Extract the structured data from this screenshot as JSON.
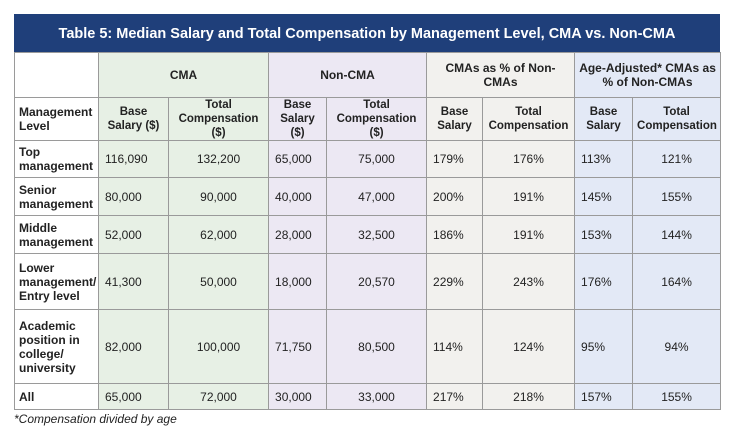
{
  "title": "Table 5: Median Salary and Total Compensation by Management Level, CMA vs. Non-CMA",
  "groups": {
    "cma": "CMA",
    "non_cma": "Non-CMA",
    "pct": "CMAs as % of Non-CMAs",
    "age_adjusted": "Age-Adjusted* CMAs as % of Non-CMAs"
  },
  "headers": {
    "level": "Management Level",
    "base_salary_usd": "Base Salary ($)",
    "total_comp_usd": "Total Compensation ($)",
    "base_salary": "Base Salary",
    "total_comp": "Total Compensation"
  },
  "rows": [
    {
      "level": "Top management",
      "cma_base": "116,090",
      "cma_total": "132,200",
      "non_base": "65,000",
      "non_total": "75,000",
      "pct_base": "179%",
      "pct_total": "176%",
      "age_base": "113%",
      "age_total": "121%"
    },
    {
      "level": "Senior management",
      "cma_base": "80,000",
      "cma_total": "90,000",
      "non_base": "40,000",
      "non_total": "47,000",
      "pct_base": "200%",
      "pct_total": "191%",
      "age_base": "145%",
      "age_total": "155%"
    },
    {
      "level": "Middle management",
      "cma_base": "52,000",
      "cma_total": "62,000",
      "non_base": "28,000",
      "non_total": "32,500",
      "pct_base": "186%",
      "pct_total": "191%",
      "age_base": "153%",
      "age_total": "144%"
    },
    {
      "level": "Lower management/ Entry level",
      "cma_base": "41,300",
      "cma_total": "50,000",
      "non_base": "18,000",
      "non_total": "20,570",
      "pct_base": "229%",
      "pct_total": "243%",
      "age_base": "176%",
      "age_total": "164%"
    },
    {
      "level": "Academic position in college/ university",
      "cma_base": "82,000",
      "cma_total": "100,000",
      "non_base": "71,750",
      "non_total": "80,500",
      "pct_base": "114%",
      "pct_total": "124%",
      "age_base": "95%",
      "age_total": "94%"
    },
    {
      "level": "All",
      "cma_base": "65,000",
      "cma_total": "72,000",
      "non_base": "30,000",
      "non_total": "33,000",
      "pct_base": "217%",
      "pct_total": "218%",
      "age_base": "157%",
      "age_total": "155%"
    }
  ],
  "footnote": "*Compensation divided by age",
  "colors": {
    "title_bar": "#1f3f7a",
    "cma_column": "#e7f0e5",
    "non_cma_column": "#ece8f3",
    "pct_column": "#f2f1ee",
    "age_adjusted_column": "#e3e9f6"
  }
}
